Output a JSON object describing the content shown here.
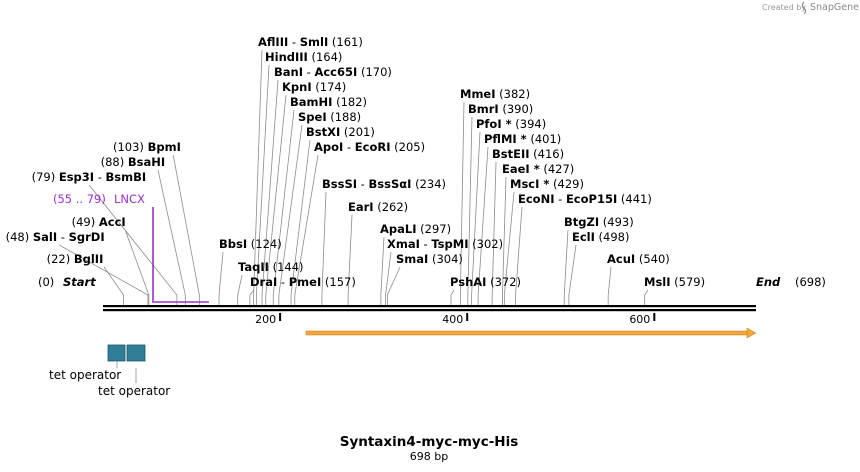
{
  "credit": {
    "prefix": "Created by",
    "brand": "SnapGene"
  },
  "sequence": {
    "name": "Syntaxin4-myc-myc-His",
    "length_label": "698 bp",
    "length": 698
  },
  "ends": {
    "start_label": "Start",
    "start_pos": "(0)",
    "end_label": "End",
    "end_pos": "(698)"
  },
  "ticks": [
    "200",
    "400",
    "600"
  ],
  "ticks_values": [
    200,
    400,
    600
  ],
  "sites": [
    {
      "name": "AflIII",
      "name2": "SmlI",
      "num": "(161)",
      "pos": 161
    },
    {
      "name": "HindIII",
      "num": "(164)",
      "pos": 164
    },
    {
      "name": "BanI",
      "name2": "Acc65I",
      "num": "(170)",
      "pos": 170
    },
    {
      "name": "KpnI",
      "num": "(174)",
      "pos": 174
    },
    {
      "name": "BamHI",
      "num": "(182)",
      "pos": 182
    },
    {
      "name": "SpeI",
      "num": "(188)",
      "pos": 188
    },
    {
      "name": "BstXI",
      "num": "(201)",
      "pos": 201
    },
    {
      "name": "ApoI",
      "name2": "EcoRI",
      "num": "(205)",
      "pos": 205
    },
    {
      "name": "BpmI",
      "num": "(103)",
      "pos": 103
    },
    {
      "name": "BsaHI",
      "num": "(88)",
      "pos": 88
    },
    {
      "name": "Esp3I",
      "name2": "BsmBI",
      "num": "(79)",
      "pos": 79
    },
    {
      "name": "AccI",
      "num": "(49)",
      "pos": 49
    },
    {
      "name": "SalI",
      "name2": "SgrDI",
      "num": "(48)",
      "pos": 48
    },
    {
      "name": "BglII",
      "num": "(22)",
      "pos": 22
    },
    {
      "name": "BbsI",
      "num": "(124)",
      "pos": 124
    },
    {
      "name": "TaqII",
      "num": "(144)",
      "pos": 144
    },
    {
      "name": "DraI",
      "name2": "PmeI",
      "num": "(157)",
      "pos": 157
    },
    {
      "name": "BssSI",
      "name2": "BssSαI",
      "num": "(234)",
      "pos": 234
    },
    {
      "name": "EarI",
      "num": "(262)",
      "pos": 262
    },
    {
      "name": "ApaLI",
      "num": "(297)",
      "pos": 297
    },
    {
      "name": "XmaI",
      "name2": "TspMI",
      "num": "(302)",
      "pos": 302
    },
    {
      "name": "SmaI",
      "num": "(304)",
      "pos": 304
    },
    {
      "name": "MmeI",
      "num": "(382)",
      "pos": 382
    },
    {
      "name": "BmrI",
      "num": "(390)",
      "pos": 390
    },
    {
      "name": "PfoI *",
      "num": "(394)",
      "pos": 394
    },
    {
      "name": "PflMI *",
      "num": "(401)",
      "pos": 401
    },
    {
      "name": "BstEII",
      "num": "(416)",
      "pos": 416
    },
    {
      "name": "EaeI *",
      "num": "(427)",
      "pos": 427
    },
    {
      "name": "MscI *",
      "num": "(429)",
      "pos": 429
    },
    {
      "name": "EcoNI",
      "name2": "EcoP15I",
      "num": "(441)",
      "pos": 441
    },
    {
      "name": "PshAI",
      "num": "(372)",
      "pos": 372
    },
    {
      "name": "BtgZI",
      "num": "(493)",
      "pos": 493
    },
    {
      "name": "EclI",
      "num": "(498)",
      "pos": 498
    },
    {
      "name": "AcuI",
      "num": "(540)",
      "pos": 540
    },
    {
      "name": "MslI",
      "num": "(579)",
      "pos": 579
    }
  ],
  "features": {
    "lncx": {
      "range": "(55 .. 79)",
      "name": "LNCX",
      "color": "#9b30d0",
      "start": 55,
      "end": 79
    },
    "tet_operator_1": {
      "name": "tet operator"
    },
    "tet_operator_2": {
      "name": "tet operator"
    },
    "operator_color": "#2f7d96",
    "orf_color": "#f2a83a"
  }
}
